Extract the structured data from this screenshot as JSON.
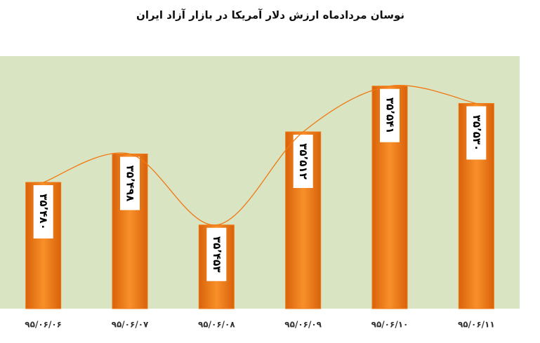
{
  "chart_data": {
    "type": "bar",
    "title": "نوسان مردادماه ارزش دلار آمریکا در بازار آزاد ایران",
    "categories": [
      "۹۵/۰۶/۰۶",
      "۹۵/۰۶/۰۷",
      "۹۵/۰۶/۰۸",
      "۹۵/۰۶/۰۹",
      "۹۵/۰۶/۱۰",
      "۹۵/۰۶/۱۱"
    ],
    "values": [
      35480,
      35498,
      35453,
      35512,
      35541,
      35530
    ],
    "value_labels": [
      "۳۵٬۴۸۰",
      "۳۵٬۴۹۸",
      "۳۵٬۴۵۳",
      "۳۵٬۵۱۲",
      "۳۵٬۵۴۱",
      "۳۵٬۵۳۰"
    ],
    "color": "#f07812",
    "line_color": "#f07812",
    "ylim": [
      35400,
      35560
    ]
  }
}
